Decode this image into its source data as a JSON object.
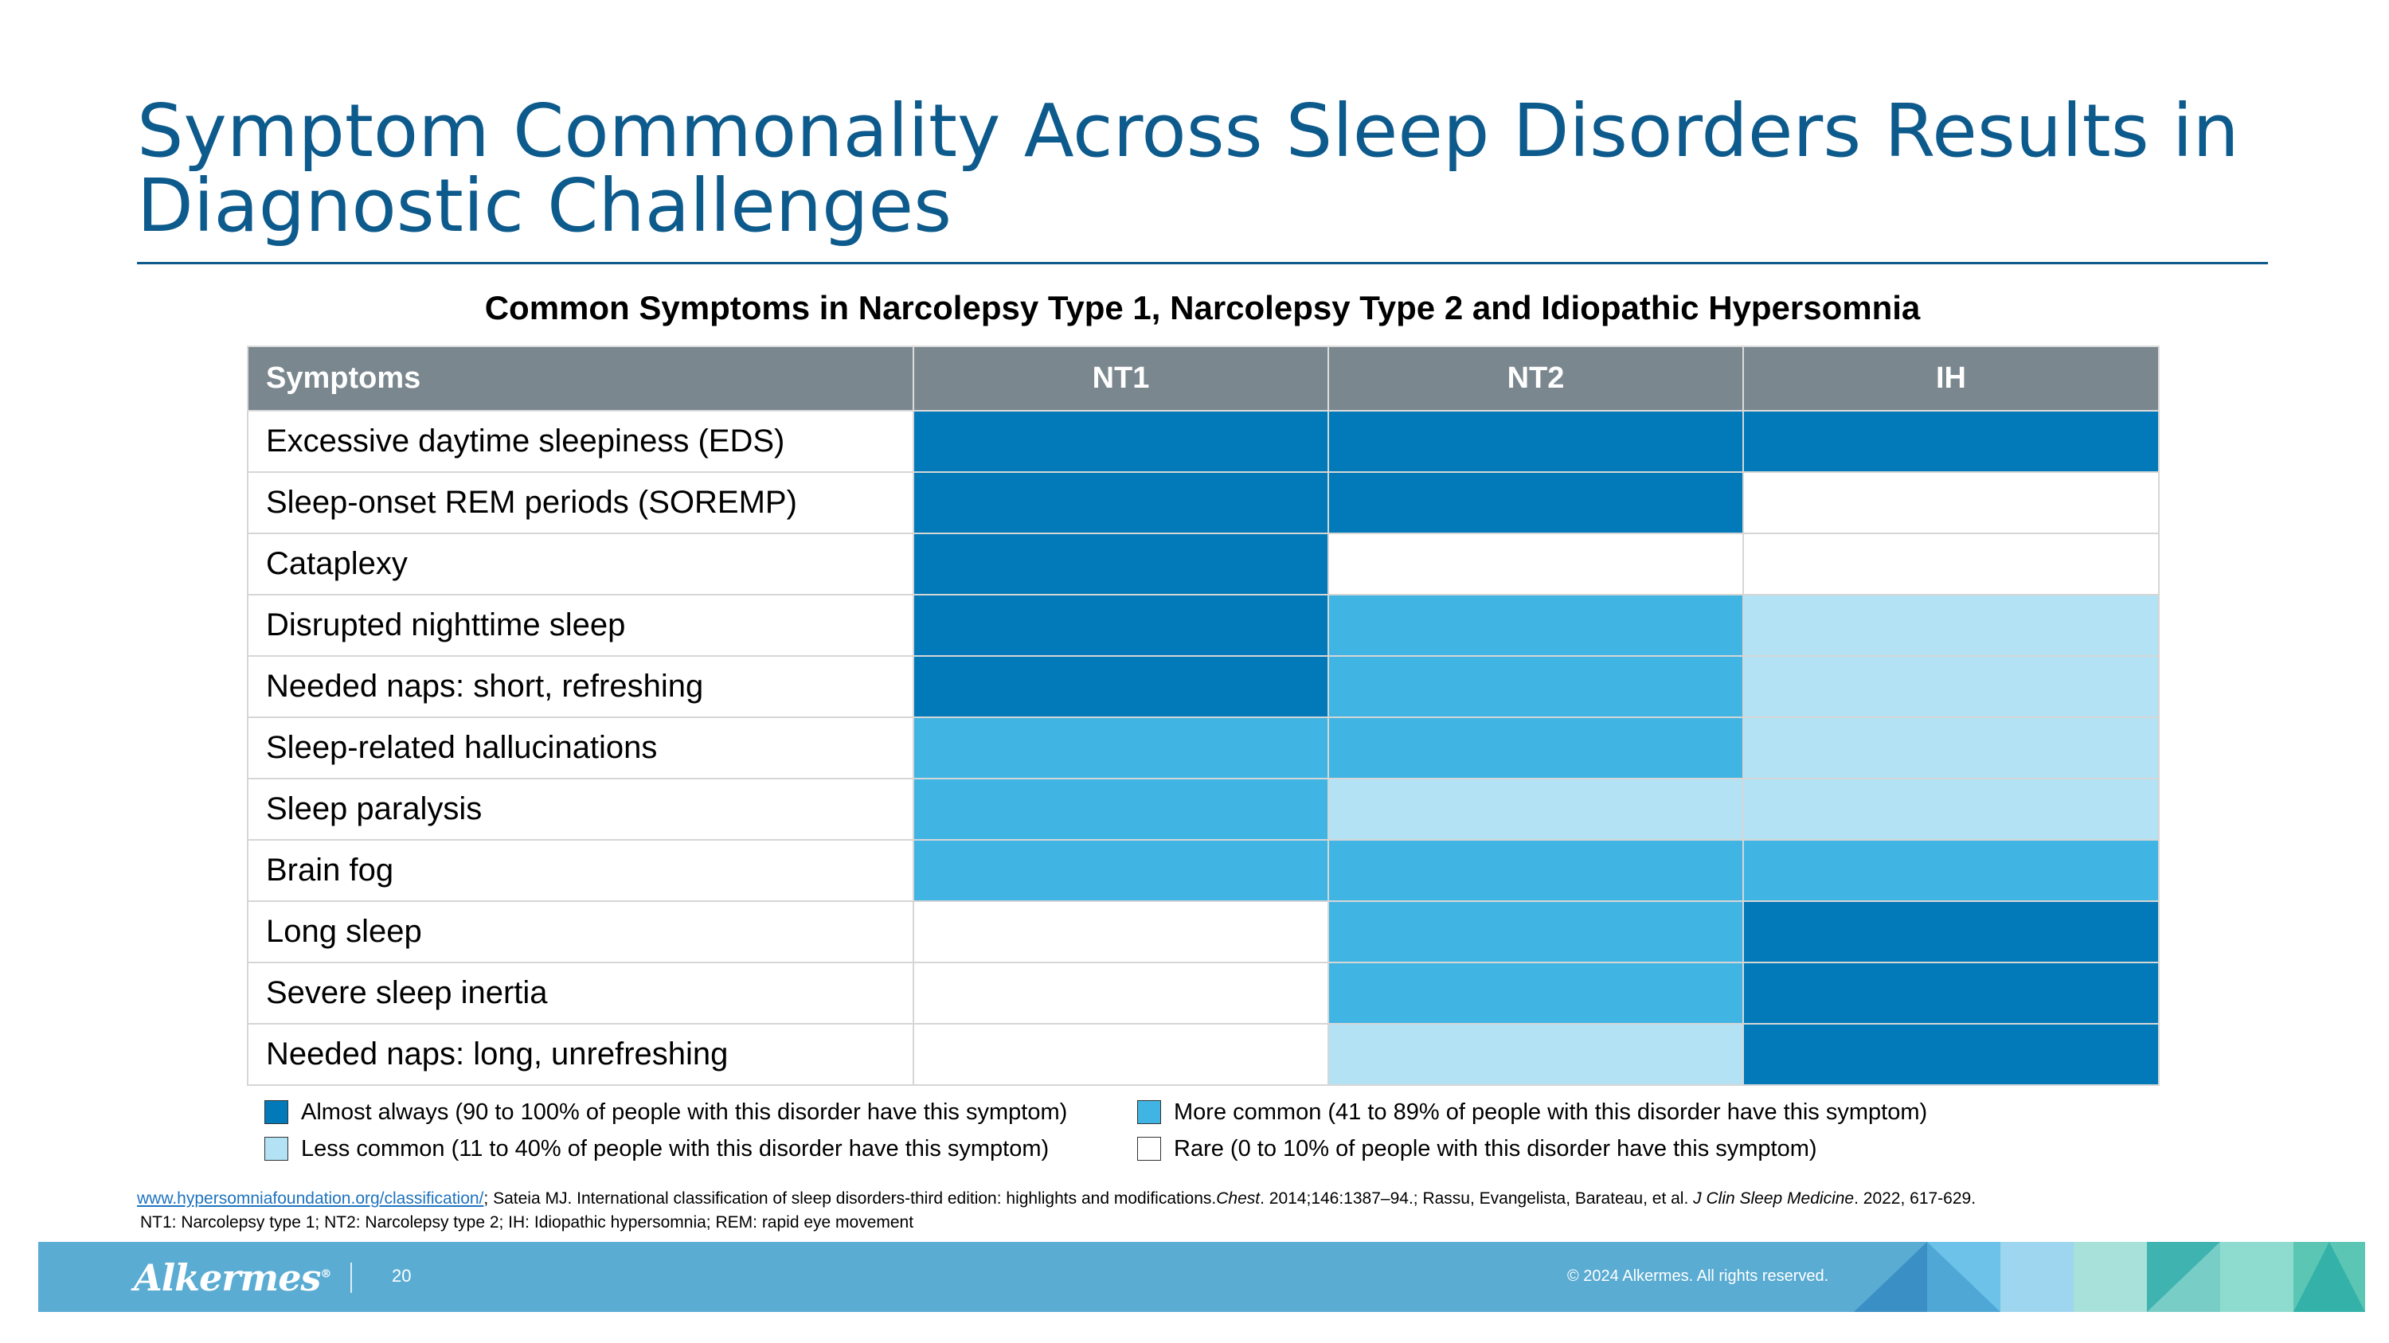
{
  "title": "Symptom Commonality Across Sleep Disorders Results in Diagnostic Challenges",
  "subtitle": "Common Symptoms in Narcolepsy Type 1, Narcolepsy Type 2 and Idiopathic Hypersomnia",
  "table": {
    "headers": [
      "Symptoms",
      "NT1",
      "NT2",
      "IH"
    ],
    "rows": [
      {
        "symptom": "Excessive daytime sleepiness (EDS)",
        "levels": [
          "always",
          "always",
          "always"
        ]
      },
      {
        "symptom": "Sleep-onset REM periods (SOREMP)",
        "levels": [
          "always",
          "always",
          "rare"
        ]
      },
      {
        "symptom": "Cataplexy",
        "levels": [
          "always",
          "rare",
          "rare"
        ]
      },
      {
        "symptom": "Disrupted nighttime sleep",
        "levels": [
          "always",
          "more",
          "less"
        ]
      },
      {
        "symptom": "Needed naps: short, refreshing",
        "levels": [
          "always",
          "more",
          "less"
        ]
      },
      {
        "symptom": "Sleep-related hallucinations",
        "levels": [
          "more",
          "more",
          "less"
        ]
      },
      {
        "symptom": "Sleep paralysis",
        "levels": [
          "more",
          "less",
          "less"
        ]
      },
      {
        "symptom": "Brain fog",
        "levels": [
          "more",
          "more",
          "more"
        ]
      },
      {
        "symptom": "Long sleep",
        "levels": [
          "rare",
          "more",
          "always"
        ]
      },
      {
        "symptom": "Severe sleep inertia",
        "levels": [
          "rare",
          "more",
          "always"
        ]
      },
      {
        "symptom": "Needed naps: long, unrefreshing",
        "levels": [
          "rare",
          "less",
          "always"
        ]
      }
    ]
  },
  "legend": {
    "always": {
      "label": "Almost always (90 to 100% of people with this disorder have this symptom)",
      "color": "#0279b8"
    },
    "more": {
      "label": "More common (41 to 89% of people with this disorder have this symptom)",
      "color": "#40b5e3"
    },
    "less": {
      "label": "Less common (11 to 40% of people with this disorder have this symptom)",
      "color": "#b2e2f4"
    },
    "rare": {
      "label": "Rare (0 to 10% of people with this disorder have this symptom)",
      "color": "#ffffff"
    }
  },
  "references": {
    "link_text": "www.hypersomniafoundation.org/classification/",
    "text1": "; Sateia MJ. International classification of sleep disorders-third edition: highlights and modifications.",
    "journal1": "Chest",
    "text2": ". 2014;146:1387–94.; Rassu, Evangelista, Barateau, et al.",
    "journal2": "J  Clin Sleep Medicine",
    "text3": ". 2022, 617-629."
  },
  "abbreviations": "NT1: Narcolepsy type 1; NT2: Narcolepsy type 2; IH: Idiopathic hypersomnia; REM: rapid eye movement",
  "footer": {
    "logo": "Alkermes",
    "logo_mark": "®",
    "page_number": "20",
    "copyright": "© 2024 Alkermes. All rights reserved."
  }
}
